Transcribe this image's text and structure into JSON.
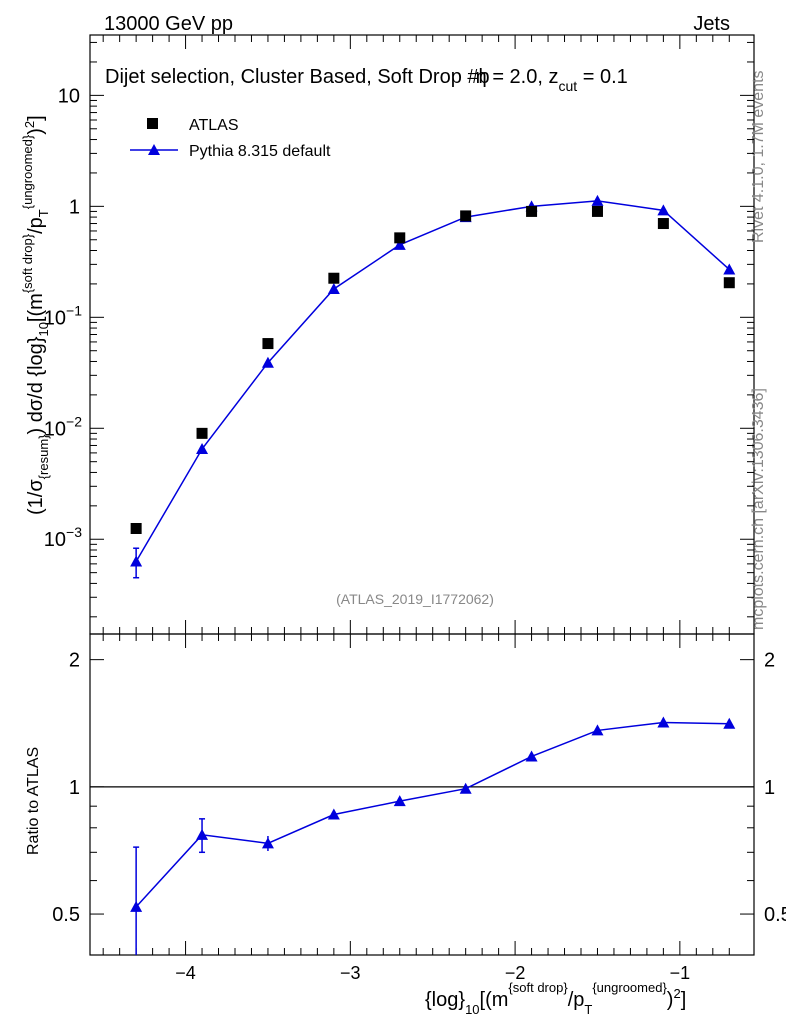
{
  "header": {
    "left": "13000 GeV pp",
    "right": "Jets"
  },
  "title": {
    "main": "Dijet selection, Cluster Based, Soft Drop #b",
    "beta_sym": "η",
    "beta_val": " = 2.0, z",
    "zcut_sub": "cut",
    "zcut_val": " = 0.1"
  },
  "side": {
    "rivet": "Rivet 4.1.0,  1.7M events",
    "mcplots": "mcplots.cern.ch [arXiv:1306.3436]"
  },
  "analysis_id": "(ATLAS_2019_I1772062)",
  "legend": {
    "atlas": "ATLAS",
    "pythia": "Pythia 8.315 default"
  },
  "colors": {
    "pythia": "#0000dd",
    "atlas": "#000000",
    "frame": "#000000",
    "watermark": "#888888"
  },
  "top_axis": {
    "ylabel": {
      "a": "(1/σ",
      "b": "{resum}",
      "c": ") dσ/d {log}",
      "d": "10",
      "e": "[(m",
      "f": "{soft drop}",
      "g": "/p",
      "h": "T",
      "i": "{ungroomed}",
      "j": ")",
      "k": "2",
      "l": "]"
    },
    "ticks": [
      {
        "value": 10,
        "text": "10",
        "exp": ""
      },
      {
        "value": 1,
        "text": "1",
        "exp": ""
      },
      {
        "value": 0.1,
        "text": "10",
        "exp": "−1"
      },
      {
        "value": 0.01,
        "text": "10",
        "exp": "−2"
      },
      {
        "value": 0.001,
        "text": "10",
        "exp": "−3"
      }
    ]
  },
  "bottom_axis": {
    "ylabel": "Ratio to ATLAS",
    "ticks": [
      "0.5",
      "1",
      "2"
    ],
    "xticks": [
      "−4",
      "−3",
      "−2",
      "−1"
    ],
    "xlabel": {
      "a": "{log}",
      "b": "10",
      "c": "[(m",
      "d": "{soft drop}",
      "e": "/p",
      "f": "T",
      "g": "{ungroomed}",
      "h": ")",
      "i": "2",
      "j": "]"
    }
  },
  "chart_data": {
    "type": "scatter",
    "xlim": [
      -4.58,
      -0.55
    ],
    "main_ylim": [
      0.00014,
      35
    ],
    "ratio_ylim": [
      0.4,
      2.3
    ],
    "series": [
      {
        "name": "ATLAS",
        "x": [
          -4.3,
          -3.9,
          -3.5,
          -3.1,
          -2.7,
          -2.3,
          -1.9,
          -1.5,
          -1.1,
          -0.7
        ],
        "values": [
          0.00125,
          0.009,
          0.058,
          0.225,
          0.52,
          0.82,
          0.9,
          0.9,
          0.7,
          0.205
        ]
      },
      {
        "name": "Pythia 8.315 default",
        "x": [
          -4.3,
          -3.9,
          -3.5,
          -3.1,
          -2.7,
          -2.3,
          -1.9,
          -1.5,
          -1.1,
          -0.7
        ],
        "values": [
          0.00063,
          0.0065,
          0.039,
          0.18,
          0.45,
          0.8,
          1.0,
          1.12,
          0.92,
          0.27
        ],
        "err_low": [
          0.00018,
          0.0004,
          0.0015,
          0.004,
          0.008,
          0.01,
          0.01,
          0.01,
          0.01,
          0.01
        ],
        "err_high": [
          0.0002,
          0.0004,
          0.0015,
          0.004,
          0.008,
          0.01,
          0.01,
          0.01,
          0.01,
          0.01
        ]
      }
    ],
    "ratio": {
      "name": "Pythia 8.315 default / ATLAS",
      "x": [
        -4.3,
        -3.9,
        -3.5,
        -3.1,
        -2.7,
        -2.3,
        -1.9,
        -1.5,
        -1.1,
        -0.7
      ],
      "values": [
        0.52,
        0.77,
        0.735,
        0.86,
        0.925,
        0.99,
        1.18,
        1.36,
        1.42,
        1.41
      ],
      "err_low": [
        0.18,
        0.07,
        0.03,
        0.01,
        0.01,
        0.01,
        0.01,
        0.01,
        0.01,
        0.01
      ],
      "err_high": [
        0.2,
        0.07,
        0.03,
        0.01,
        0.01,
        0.01,
        0.01,
        0.01,
        0.01,
        0.01
      ]
    }
  }
}
